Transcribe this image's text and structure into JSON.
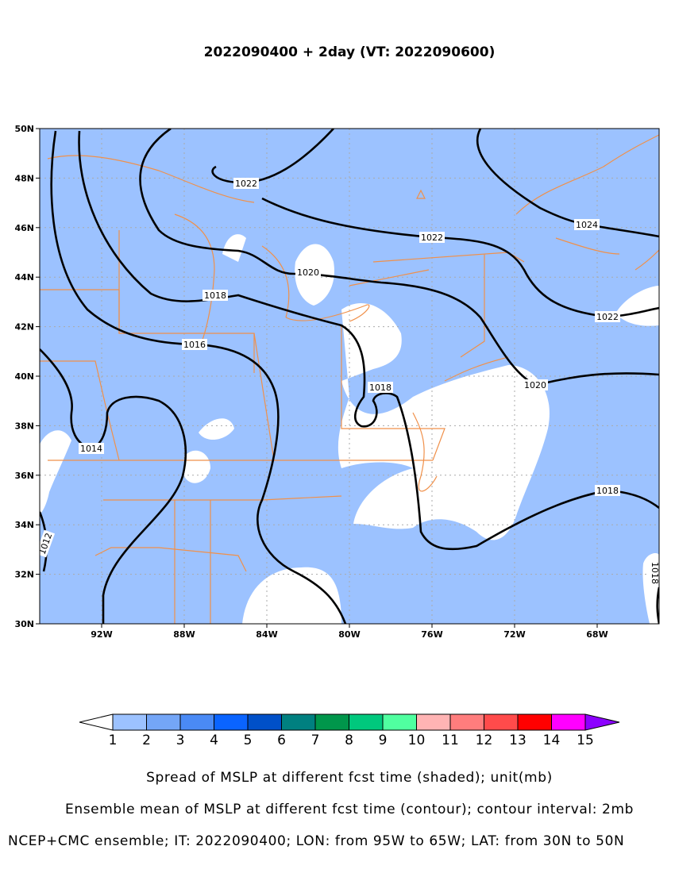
{
  "title": "2022090400 + 2day (VT: 2022090600)",
  "map": {
    "xlim": [
      -95,
      -65
    ],
    "ylim": [
      30,
      50
    ],
    "xticks": [
      {
        "value": -92,
        "label": "92W"
      },
      {
        "value": -88,
        "label": "88W"
      },
      {
        "value": -84,
        "label": "84W"
      },
      {
        "value": -80,
        "label": "80W"
      },
      {
        "value": -76,
        "label": "76W"
      },
      {
        "value": -72,
        "label": "72W"
      },
      {
        "value": -68,
        "label": "68W"
      }
    ],
    "yticks": [
      {
        "value": 30,
        "label": "30N"
      },
      {
        "value": 32,
        "label": "32N"
      },
      {
        "value": 34,
        "label": "34N"
      },
      {
        "value": 36,
        "label": "36N"
      },
      {
        "value": 38,
        "label": "38N"
      },
      {
        "value": 40,
        "label": "40N"
      },
      {
        "value": 42,
        "label": "42N"
      },
      {
        "value": 44,
        "label": "44N"
      },
      {
        "value": 46,
        "label": "46N"
      },
      {
        "value": 48,
        "label": "48N"
      },
      {
        "value": 50,
        "label": "50N"
      }
    ],
    "grid": true,
    "contour_labels": [
      1022,
      1022,
      1024,
      1020,
      1018,
      1016,
      1014,
      1018,
      1020,
      1022,
      1018,
      1012,
      1018
    ]
  },
  "colorbar": {
    "colors": [
      "#ffffff",
      "#9cc2ff",
      "#74a6f7",
      "#4a8af5",
      "#0a64ff",
      "#0050c8",
      "#008080",
      "#00964b",
      "#00c87d",
      "#50ffa0",
      "#ffb4b4",
      "#ff7d7d",
      "#ff4b4b",
      "#ff0000",
      "#ff00ff",
      "#8c00ff"
    ],
    "labels": [
      1,
      2,
      3,
      4,
      5,
      6,
      7,
      8,
      9,
      10,
      11,
      12,
      13,
      14,
      15
    ]
  },
  "footer": [
    "Spread of MSLP at different fcst time (shaded); unit(mb)",
    "Ensemble mean of MSLP at different fcst time (contour); contour interval: 2mb",
    "NCEP+CMC ensemble; IT: 2022090400; LON: from 95W to 65W; LAT: from 30N to 50N"
  ]
}
